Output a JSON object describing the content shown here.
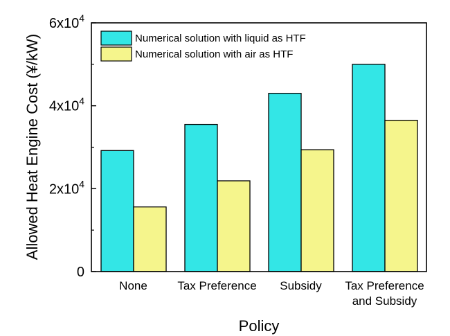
{
  "chart_data": {
    "type": "bar",
    "title": "",
    "xlabel": "Policy",
    "ylabel": "Allowed Heat Engine Cost (¥/kW)",
    "categories": [
      [
        "None"
      ],
      [
        "Tax  Preference"
      ],
      [
        "Subsidy"
      ],
      [
        "Tax Preference",
        "and Subsidy"
      ]
    ],
    "series": [
      {
        "name": "Numerical solution with liquid as HTF",
        "color": "#33E6E6",
        "values": [
          29200,
          35500,
          43000,
          50000
        ]
      },
      {
        "name": "Numerical solution with air as HTF",
        "color": "#F5F58C",
        "values": [
          15600,
          21900,
          29400,
          36500
        ]
      }
    ],
    "ylim": [
      0,
      60000
    ],
    "yticks": [
      {
        "value": 0,
        "mantissa": "0",
        "exponent": ""
      },
      {
        "value": 20000,
        "mantissa": "2x10",
        "exponent": "4"
      },
      {
        "value": 40000,
        "mantissa": "4x10",
        "exponent": "4"
      },
      {
        "value": 60000,
        "mantissa": "6x10",
        "exponent": "4"
      }
    ],
    "grid": false,
    "legend": "top-left"
  }
}
